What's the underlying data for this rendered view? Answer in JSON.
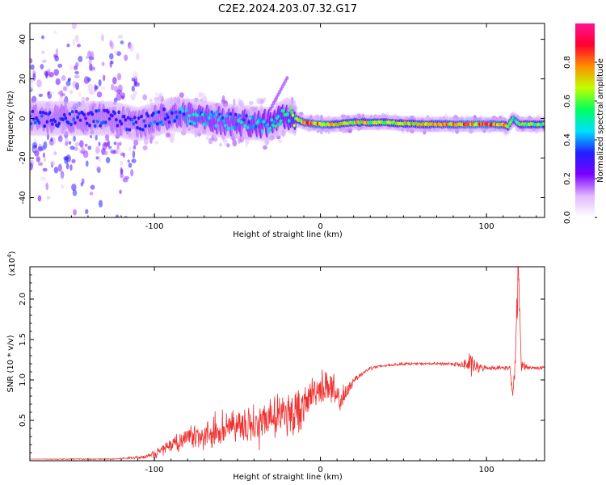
{
  "title": "C2E2.2024.203.07.32.G17",
  "chart_data": [
    {
      "type": "heatmap",
      "xlabel": "Height of straight line (km)",
      "ylabel": "Frequency (Hz)",
      "xlim": [
        -175,
        135
      ],
      "ylim": [
        -50,
        48
      ],
      "xticks": [
        -100,
        0,
        100
      ],
      "xtick_labels": [
        "-100",
        "0",
        "100"
      ],
      "yticks": [
        -40,
        -20,
        0,
        20,
        40
      ],
      "ytick_labels": [
        "-40",
        "-20",
        "0",
        "20",
        "40"
      ],
      "colorbar": {
        "label": "Normalized spectral amplitude",
        "range": [
          0.0,
          1.0
        ],
        "ticks": [
          0.0,
          0.2,
          0.4,
          0.6,
          0.8
        ],
        "tick_labels": [
          "0.0",
          "0.2",
          "0.4",
          "0.6",
          "0.8"
        ],
        "colormap": [
          "#ffffff",
          "#e0b8ff",
          "#7a00ff",
          "#2020ff",
          "#00e0ff",
          "#00ff60",
          "#c0ff00",
          "#ff9000",
          "#ff0030",
          "#ff1493"
        ]
      },
      "ridge": {
        "x": [
          -175,
          -150,
          -125,
          -110,
          -90,
          -75,
          -60,
          -45,
          -30,
          -20,
          -15,
          -10,
          0,
          10,
          20,
          40,
          60,
          80,
          90,
          100,
          110,
          113,
          116,
          120,
          135
        ],
        "y": [
          0,
          0,
          0,
          -3,
          2,
          1,
          -1,
          -2,
          -3,
          2,
          0,
          -2,
          -3,
          -3,
          -2,
          -2,
          -3,
          -3,
          -3,
          -3,
          -3,
          -4,
          0,
          -3,
          -3
        ],
        "amplitude": [
          0.35,
          0.35,
          0.35,
          0.35,
          0.4,
          0.45,
          0.45,
          0.45,
          0.5,
          0.55,
          0.7,
          0.8,
          0.85,
          0.75,
          0.75,
          0.7,
          0.75,
          0.8,
          0.85,
          0.85,
          0.8,
          0.7,
          0.5,
          0.65,
          0.65
        ]
      }
    },
    {
      "type": "line",
      "xlabel": "Height of straight line (km)",
      "ylabel": "SNR (10 * v/v)",
      "multiplier_label": "(x10",
      "multiplier_exponent": "4",
      "multiplier_close": ")",
      "xlim": [
        -175,
        135
      ],
      "ylim": [
        0,
        2.4
      ],
      "xticks": [
        -100,
        0,
        100
      ],
      "xtick_labels": [
        "-100",
        "0",
        "100"
      ],
      "yticks": [
        0.5,
        1.0,
        1.5,
        2.0
      ],
      "ytick_labels": [
        "0.5",
        "1.0",
        "1.5",
        "2.0"
      ],
      "color": "#f03030",
      "series": [
        {
          "x": [
            -175,
            -150,
            -125,
            -105,
            -100,
            -90,
            -80,
            -70,
            -60,
            -50,
            -40,
            -30,
            -20,
            -10,
            -5,
            0,
            5,
            10,
            15,
            20,
            30,
            40,
            50,
            60,
            70,
            80,
            85,
            90,
            95,
            100,
            110,
            114,
            116,
            118,
            119,
            121,
            125,
            130,
            135
          ],
          "y": [
            0.02,
            0.02,
            0.02,
            0.05,
            0.1,
            0.2,
            0.3,
            0.35,
            0.4,
            0.45,
            0.5,
            0.55,
            0.6,
            0.65,
            0.85,
            0.9,
            0.95,
            0.75,
            0.8,
            1.0,
            1.15,
            1.18,
            1.2,
            1.2,
            1.2,
            1.2,
            1.18,
            1.2,
            1.15,
            1.15,
            1.15,
            1.15,
            0.8,
            1.5,
            2.4,
            1.2,
            1.15,
            1.15,
            1.15
          ],
          "fluctuation": [
            0.0,
            0.01,
            0.01,
            0.03,
            0.06,
            0.1,
            0.15,
            0.2,
            0.25,
            0.3,
            0.3,
            0.35,
            0.4,
            0.3,
            0.25,
            0.25,
            0.35,
            0.25,
            0.15,
            0.05,
            0.03,
            0.02,
            0.02,
            0.02,
            0.02,
            0.03,
            0.05,
            0.2,
            0.08,
            0.03,
            0.03,
            0.05,
            0.1,
            0.3,
            0.5,
            0.1,
            0.03,
            0.03,
            0.03
          ]
        }
      ]
    }
  ]
}
